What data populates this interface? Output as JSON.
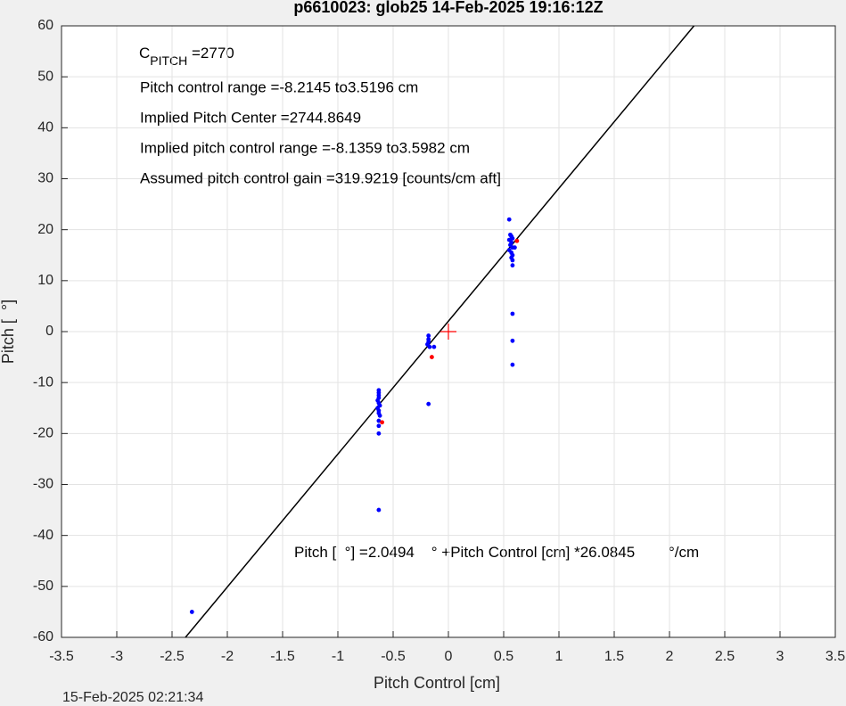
{
  "chart_data": {
    "type": "scatter",
    "title": "p6610023: glob25 14-Feb-2025 19:16:12Z",
    "xlabel": "Pitch Control [cm]",
    "ylabel": "Pitch [  °]",
    "timestamp": "15-Feb-2025 02:21:34",
    "xlim": [
      -3.5,
      3.5
    ],
    "ylim": [
      -60,
      60
    ],
    "xticks": [
      -3.5,
      -3,
      -2.5,
      -2,
      -1.5,
      -1,
      -0.5,
      0,
      0.5,
      1,
      1.5,
      2,
      2.5,
      3,
      3.5
    ],
    "yticks": [
      -60,
      -50,
      -40,
      -30,
      -20,
      -10,
      0,
      10,
      20,
      30,
      40,
      50,
      60
    ],
    "grid": true,
    "pitch_label": {
      "base": "C",
      "subscript": "PITCH",
      "text": " =2770"
    },
    "annotations": [
      "Pitch control range =-8.2145 to3.5196 cm",
      "Implied Pitch Center =2744.8649",
      "Implied pitch control range =-8.1359 to3.5982 cm",
      "Assumed pitch control gain =319.9219 [counts/cm aft]"
    ],
    "fit": {
      "intercept": 2.0494,
      "slope": 26.0845,
      "color": "#000000"
    },
    "equation": {
      "lhs": "Pitch [  °] =",
      "mid": "    ° +Pitch Control [cm] *",
      "unit": "        °/cm"
    },
    "center_marker": {
      "x": 0,
      "y": 0,
      "color": "#ff0000"
    },
    "series": [
      {
        "color": "#0000ff",
        "x": [
          -0.63,
          -0.63,
          -0.63,
          -0.63,
          -0.64,
          -0.63,
          -0.62,
          -0.64,
          -0.63,
          -0.63,
          -0.62,
          -0.63,
          -0.63,
          -0.63,
          -0.63,
          -0.18,
          -0.18,
          -0.18,
          -0.19,
          -0.17,
          -0.13,
          -0.18,
          0.55,
          0.56,
          0.57,
          0.58,
          0.55,
          0.57,
          0.56,
          0.58,
          0.55,
          0.57,
          0.58,
          0.57,
          0.58,
          0.58,
          0.6,
          0.58,
          0.58,
          0.58,
          -2.32
        ],
        "y": [
          -11.5,
          -12,
          -12.5,
          -13,
          -13.5,
          -14,
          -14.5,
          -15,
          -15.5,
          -16,
          -16.5,
          -17.5,
          -18.5,
          -20,
          -35,
          -0.8,
          -1.5,
          -2,
          -2.5,
          -3,
          -3,
          -14.2,
          22,
          19,
          18.7,
          18.3,
          18,
          17.5,
          17,
          16.5,
          16,
          15.5,
          15,
          14.5,
          14,
          13,
          16.5,
          3.5,
          -1.8,
          -6.5,
          -55
        ]
      },
      {
        "color": "#ff0000",
        "x": [
          -0.6,
          -0.15,
          0.62
        ],
        "y": [
          -17.8,
          -5,
          17.8
        ]
      }
    ]
  }
}
